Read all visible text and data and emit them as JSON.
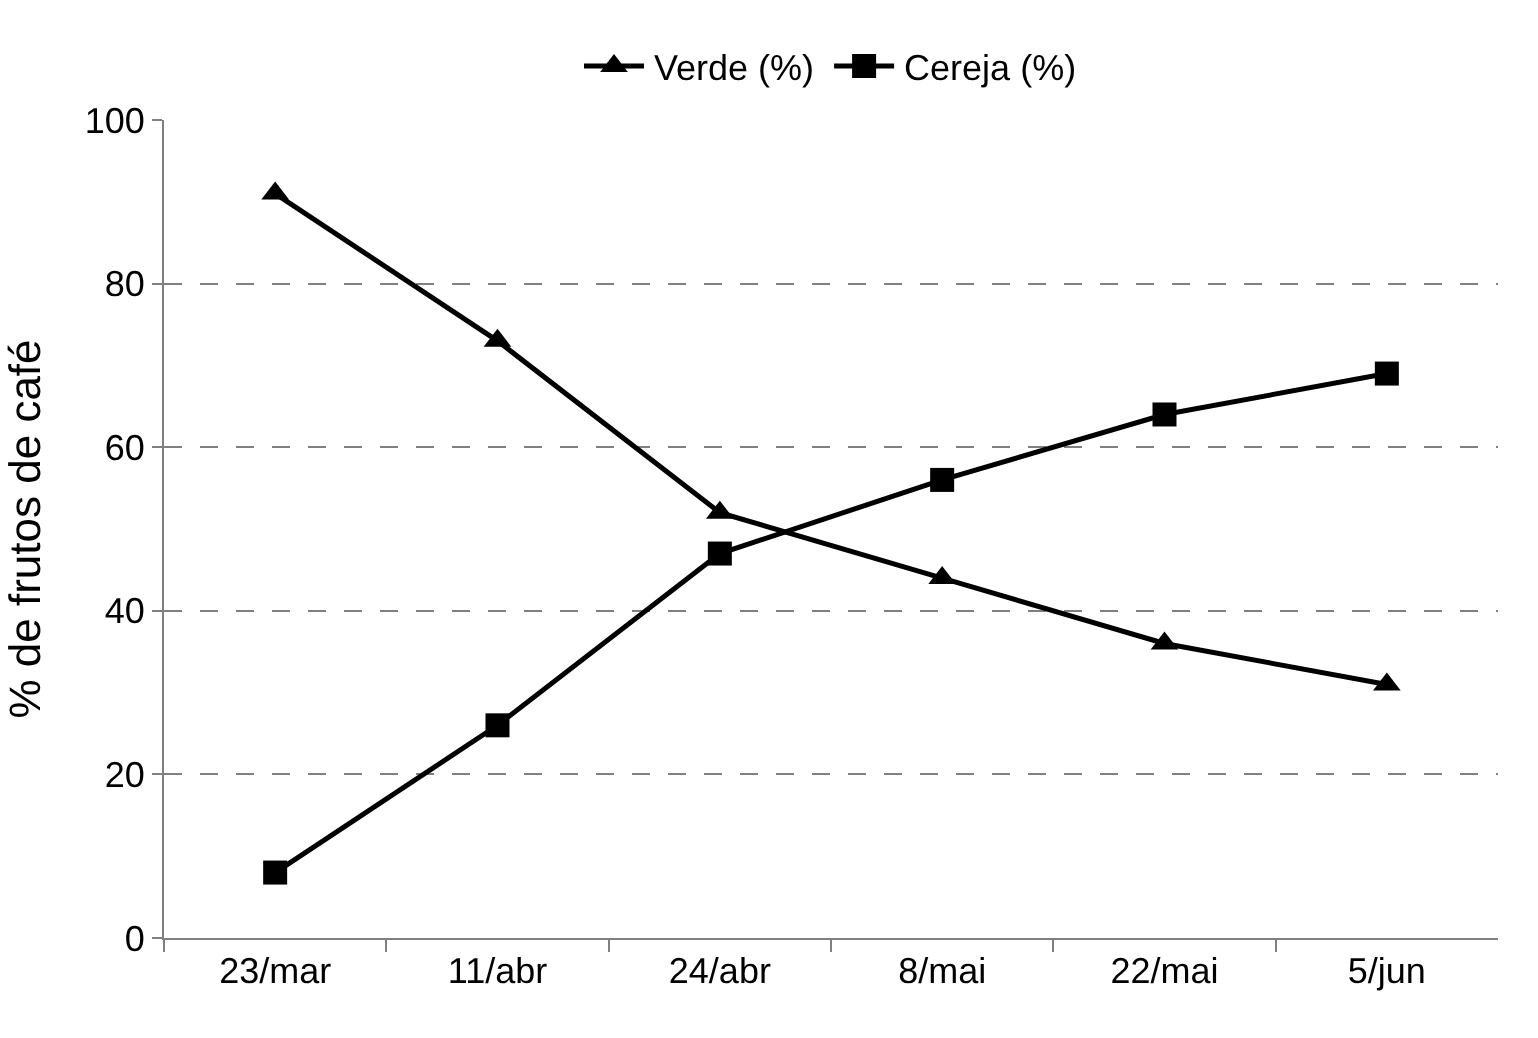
{
  "chart_data": {
    "type": "line",
    "ylabel": "% de frutos de café",
    "categories": [
      "23/mar",
      "11/abr",
      "24/abr",
      "8/mai",
      "22/mai",
      "5/jun"
    ],
    "series": [
      {
        "name": "Verde (%)",
        "color": "#000000",
        "marker": "triangle",
        "values": [
          91,
          73,
          52,
          44,
          36,
          31
        ]
      },
      {
        "name": "Cereja (%)",
        "color": "#000000",
        "marker": "square",
        "values": [
          8,
          26,
          47,
          56,
          64,
          69
        ]
      }
    ],
    "ylim": [
      0,
      100
    ],
    "yticks": [
      0,
      20,
      40,
      60,
      80,
      100
    ],
    "grid": "y",
    "legend": "top",
    "line_style": "solid"
  }
}
